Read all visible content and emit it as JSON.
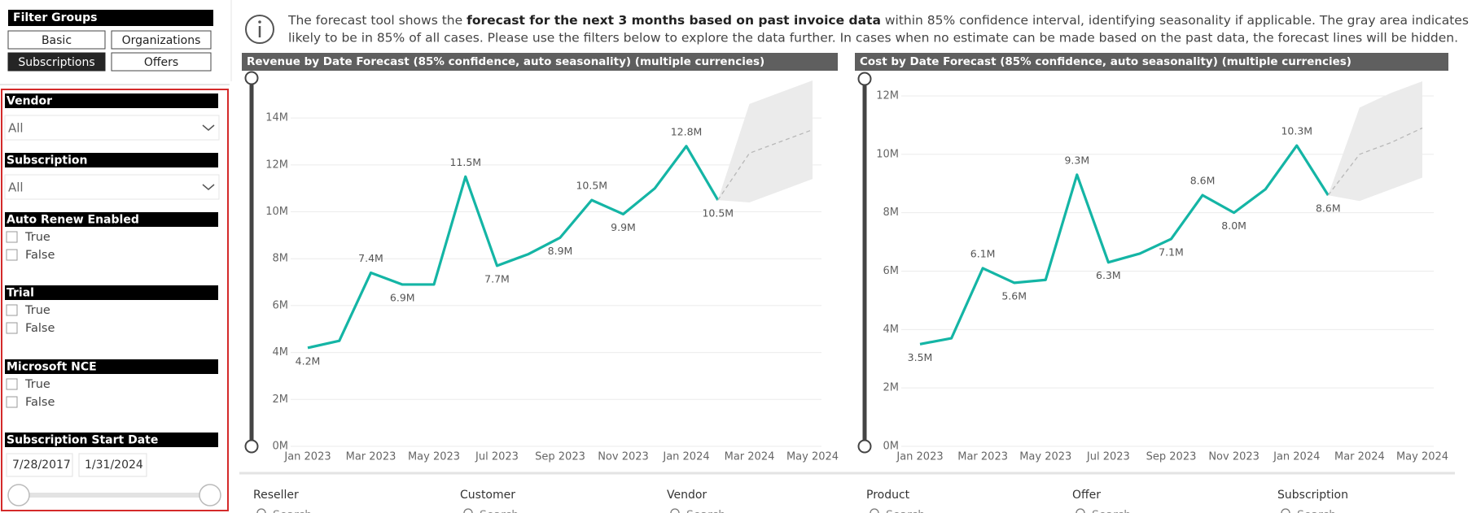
{
  "filter_groups": {
    "title": "Filter Groups",
    "buttons": [
      {
        "label": "Basic",
        "active": false
      },
      {
        "label": "Organizations",
        "active": false
      },
      {
        "label": "Subscriptions",
        "active": true
      },
      {
        "label": "Offers",
        "active": false
      }
    ]
  },
  "filters": [
    {
      "title": "Vendor",
      "value": "All"
    },
    {
      "title": "Subscription",
      "value": "All"
    },
    {
      "title": "Auto Renew Enabled",
      "options": [
        "True",
        "False"
      ]
    },
    {
      "title": "Trial",
      "options": [
        "True",
        "False"
      ]
    },
    {
      "title": "Microsoft NCE",
      "options": [
        "True",
        "False"
      ]
    },
    {
      "title": "Subscription Start Date",
      "from": "7/28/2017",
      "to": "1/31/2024"
    }
  ],
  "info": {
    "line1": [
      {
        "text": "The forecast tool shows the ",
        "bold": false
      },
      {
        "text": "forecast for the next 3 months based on past invoice data",
        "bold": true
      },
      {
        "text": " within 85% confidence interval, identifying seasonality if applicable. The gray area indicates where the future revenue or cost is",
        "bold": false
      }
    ],
    "line2": "likely to be in 85% of all cases. Please use the filters below to explore the data further. In cases when no estimate can be made based on the past data, the forecast lines will be hidden."
  },
  "chart_data": [
    {
      "type": "line",
      "title": "Revenue by Date Forecast (85% confidence, auto seasonality) (multiple currencies)",
      "categories": [
        "Jan 2023",
        null,
        "Mar 2023",
        null,
        "May 2023",
        null,
        "Jul 2023",
        null,
        "Sep 2023",
        null,
        "Nov 2023",
        null,
        "Jan 2024",
        null,
        "Mar 2024",
        null,
        "May 2024"
      ],
      "ylim": [
        0,
        15.6
      ],
      "yticks": [
        {
          "value": 0,
          "label": "0M"
        },
        {
          "value": 2,
          "label": "2M"
        },
        {
          "value": 4,
          "label": "4M"
        },
        {
          "value": 6,
          "label": "6M"
        },
        {
          "value": 8,
          "label": "8M"
        },
        {
          "value": 10,
          "label": "10M"
        },
        {
          "value": 12,
          "label": "12M"
        },
        {
          "value": 14,
          "label": "14M"
        }
      ],
      "grid": true,
      "series": [
        {
          "color": "#14b5a5",
          "values": [
            4.2,
            4.5,
            7.4,
            6.9,
            6.9,
            11.5,
            7.7,
            8.2,
            8.9,
            10.5,
            9.9,
            11.0,
            12.8,
            10.5,
            null,
            null,
            null
          ],
          "value_labels": [
            "4.2M",
            null,
            "7.4M",
            "6.9M",
            null,
            "11.5M",
            "7.7M",
            null,
            "8.9M",
            "10.5M",
            "9.9M",
            null,
            "12.8M",
            "10.5M",
            null,
            null,
            null
          ]
        },
        {
          "color": "#b8b8b8",
          "dashed": true,
          "values": [
            null,
            null,
            null,
            null,
            null,
            null,
            null,
            null,
            null,
            null,
            null,
            null,
            null,
            10.5,
            12.5,
            13.0,
            13.5
          ]
        }
      ],
      "band": {
        "color": "#ebebeb",
        "lower": [
          null,
          null,
          null,
          null,
          null,
          null,
          null,
          null,
          null,
          null,
          null,
          null,
          null,
          10.5,
          10.4,
          10.9,
          11.4
        ],
        "upper": [
          null,
          null,
          null,
          null,
          null,
          null,
          null,
          null,
          null,
          null,
          null,
          null,
          null,
          10.5,
          14.6,
          15.1,
          15.6
        ]
      }
    },
    {
      "type": "line",
      "title": "Cost by Date Forecast (85% confidence, auto seasonality) (multiple currencies)",
      "categories": [
        "Jan 2023",
        null,
        "Mar 2023",
        null,
        "May 2023",
        null,
        "Jul 2023",
        null,
        "Sep 2023",
        null,
        "Nov 2023",
        null,
        "Jan 2024",
        null,
        "Mar 2024",
        null,
        "May 2024"
      ],
      "ylim": [
        0,
        12.5
      ],
      "yticks": [
        {
          "value": 0,
          "label": "0M"
        },
        {
          "value": 2,
          "label": "2M"
        },
        {
          "value": 4,
          "label": "4M"
        },
        {
          "value": 6,
          "label": "6M"
        },
        {
          "value": 8,
          "label": "8M"
        },
        {
          "value": 10,
          "label": "10M"
        },
        {
          "value": 12,
          "label": "12M"
        }
      ],
      "grid": true,
      "series": [
        {
          "color": "#14b5a5",
          "values": [
            3.5,
            3.7,
            6.1,
            5.6,
            5.7,
            9.3,
            6.3,
            6.6,
            7.1,
            8.6,
            8.0,
            8.8,
            10.3,
            8.6,
            null,
            null,
            null
          ],
          "value_labels": [
            "3.5M",
            null,
            "6.1M",
            "5.6M",
            null,
            "9.3M",
            "6.3M",
            null,
            "7.1M",
            "8.6M",
            "8.0M",
            null,
            "10.3M",
            "8.6M",
            null,
            null,
            null
          ]
        },
        {
          "color": "#b8b8b8",
          "dashed": true,
          "values": [
            null,
            null,
            null,
            null,
            null,
            null,
            null,
            null,
            null,
            null,
            null,
            null,
            null,
            8.6,
            10.0,
            10.4,
            10.9
          ]
        }
      ],
      "band": {
        "color": "#ebebeb",
        "lower": [
          null,
          null,
          null,
          null,
          null,
          null,
          null,
          null,
          null,
          null,
          null,
          null,
          null,
          8.6,
          8.4,
          8.8,
          9.2
        ],
        "upper": [
          null,
          null,
          null,
          null,
          null,
          null,
          null,
          null,
          null,
          null,
          null,
          null,
          null,
          8.6,
          11.6,
          12.1,
          12.5
        ]
      }
    }
  ],
  "bottom_slicers": [
    {
      "title": "Reseller",
      "placeholder": "Search"
    },
    {
      "title": "Customer",
      "placeholder": "Search"
    },
    {
      "title": "Vendor",
      "placeholder": "Search"
    },
    {
      "title": "Product",
      "placeholder": "Search"
    },
    {
      "title": "Offer",
      "placeholder": "Search"
    },
    {
      "title": "Subscription",
      "placeholder": "Search"
    }
  ]
}
